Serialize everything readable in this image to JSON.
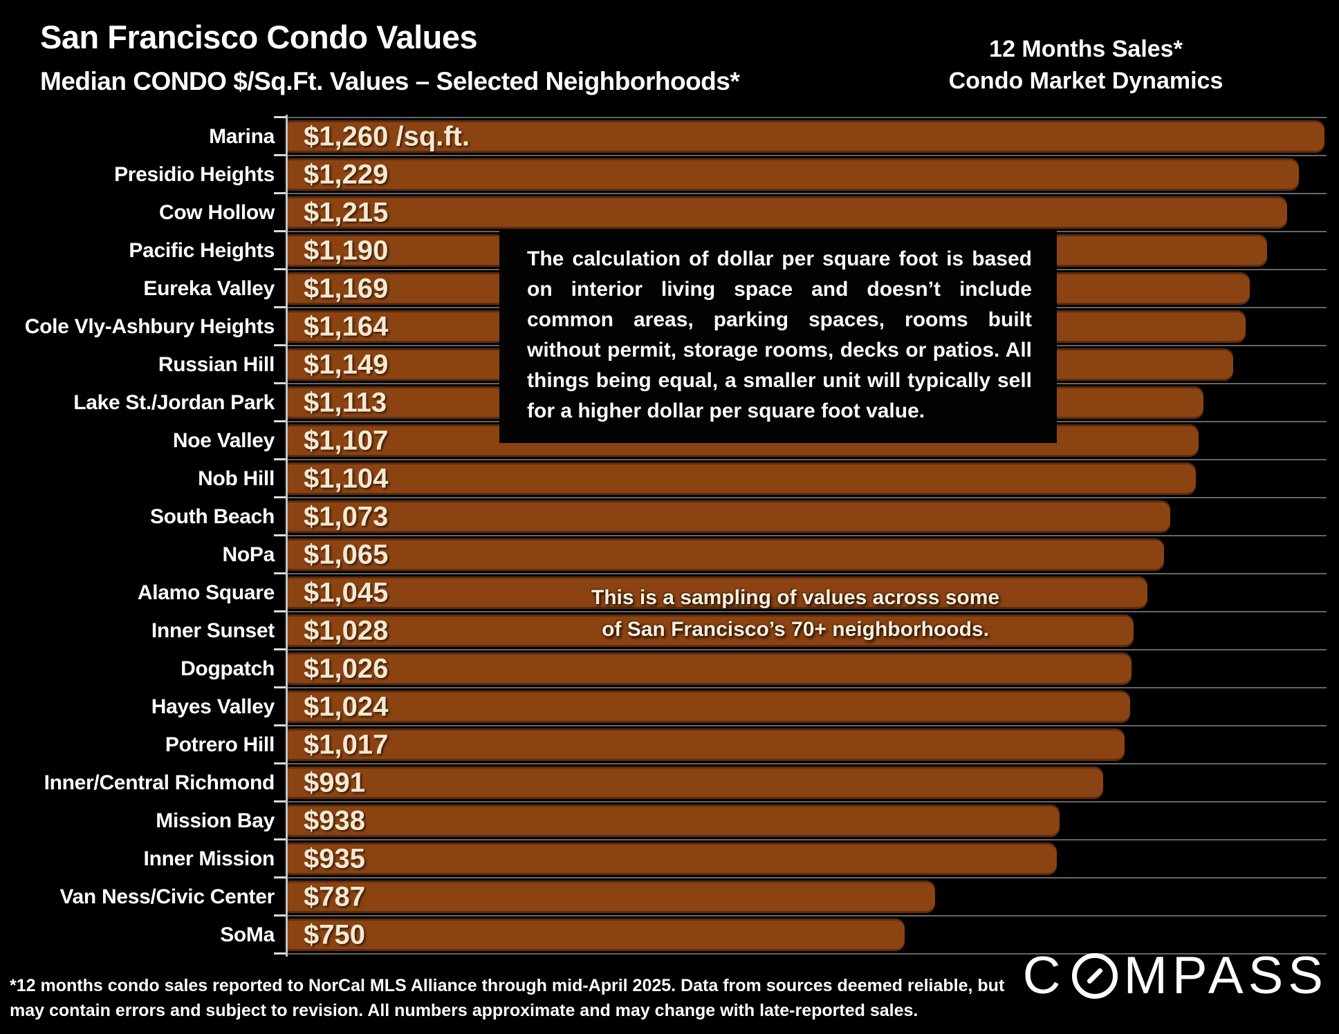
{
  "header": {
    "title": "San Francisco Condo Values",
    "subtitle": "Median CONDO $/Sq.Ft. Values – Selected Neighborhoods*",
    "right_title_line1": "12 Months Sales*",
    "right_title_line2": "Condo Market Dynamics"
  },
  "callout": {
    "text": "The calculation of dollar per square foot is based on interior living space and doesn’t include common areas, parking spaces, rooms built without permit, storage rooms, decks or patios. All things being equal, a smaller unit will typically sell for a higher dollar per square foot value."
  },
  "sampling_note": {
    "line1": "This is a sampling of values across some",
    "line2": "of San Francisco’s 70+ neighborhoods."
  },
  "footnote": {
    "line1": "*12 months condo sales reported to NorCal MLS Alliance through mid-April 2025. Data from sources deemed reliable, but",
    "line2": "may contain errors and subject to revision. All numbers approximate and may change with late-reported sales."
  },
  "brand": {
    "name": "COMPASS",
    "c": "C",
    "rest": "MPASS"
  },
  "chart_data": {
    "type": "bar",
    "orientation": "horizontal",
    "title": "San Francisco Condo Values",
    "subtitle": "Median CONDO $/Sq.Ft. Values – Selected Neighborhoods*",
    "categories": [
      "Marina",
      "Presidio Heights",
      "Cow Hollow",
      "Pacific Heights",
      "Eureka Valley",
      "Cole Vly-Ashbury Heights",
      "Russian Hill",
      "Lake St./Jordan Park",
      "Noe Valley",
      "Nob Hill",
      "South Beach",
      "NoPa",
      "Alamo Square",
      "Inner Sunset",
      "Dogpatch",
      "Hayes Valley",
      "Potrero Hill",
      "Inner/Central Richmond",
      "Mission Bay",
      "Inner Mission",
      "Van Ness/Civic Center",
      "SoMa"
    ],
    "values": [
      1260,
      1229,
      1215,
      1190,
      1169,
      1164,
      1149,
      1113,
      1107,
      1104,
      1073,
      1065,
      1045,
      1028,
      1026,
      1024,
      1017,
      991,
      938,
      935,
      787,
      750
    ],
    "value_labels": [
      "$1,260 /sq.ft.",
      "$1,229",
      "$1,215",
      "$1,190",
      "$1,169",
      "$1,164",
      "$1,149",
      "$1,113",
      "$1,107",
      "$1,104",
      "$1,073",
      "$1,065",
      "$1,045",
      "$1,028",
      "$1,026",
      "$1,024",
      "$1,017",
      "$991",
      "$938",
      "$935",
      "$787",
      "$750"
    ],
    "xlim": [
      0,
      1260
    ],
    "grid": true,
    "legend_position": "none",
    "colors": {
      "background": "#000000",
      "bar": "#8c4312",
      "value_text": "#f4e9d2",
      "label_text": "#ffffff",
      "gridline": "#63676b",
      "axis": "#c2c4c5"
    }
  }
}
